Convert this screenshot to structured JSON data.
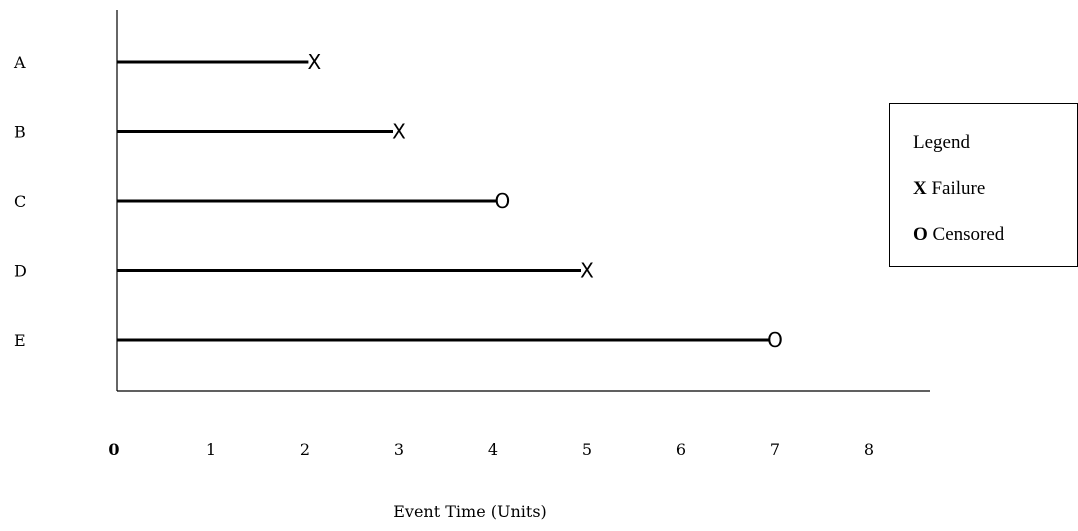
{
  "chart_data": {
    "type": "line",
    "xlabel": "Event Time (Units)",
    "ylabel": "",
    "xlim": [
      0,
      8
    ],
    "x_ticks": [
      "0",
      "1",
      "2",
      "3",
      "4",
      "5",
      "6",
      "7",
      "8"
    ],
    "grid": false,
    "subjects": [
      {
        "label": "A",
        "start": 0,
        "end": 2.1,
        "event": "X"
      },
      {
        "label": "B",
        "start": 0,
        "end": 3.0,
        "event": "X"
      },
      {
        "label": "C",
        "start": 0,
        "end": 4.1,
        "event": "O"
      },
      {
        "label": "D",
        "start": 0,
        "end": 5.0,
        "event": "X"
      },
      {
        "label": "E",
        "start": 0,
        "end": 7.0,
        "event": "O"
      }
    ],
    "legend": {
      "placement": "right",
      "title": "Legend",
      "entries": [
        {
          "symbol": "X",
          "label": "Failure"
        },
        {
          "symbol": "O",
          "label": "Censored"
        }
      ]
    }
  }
}
